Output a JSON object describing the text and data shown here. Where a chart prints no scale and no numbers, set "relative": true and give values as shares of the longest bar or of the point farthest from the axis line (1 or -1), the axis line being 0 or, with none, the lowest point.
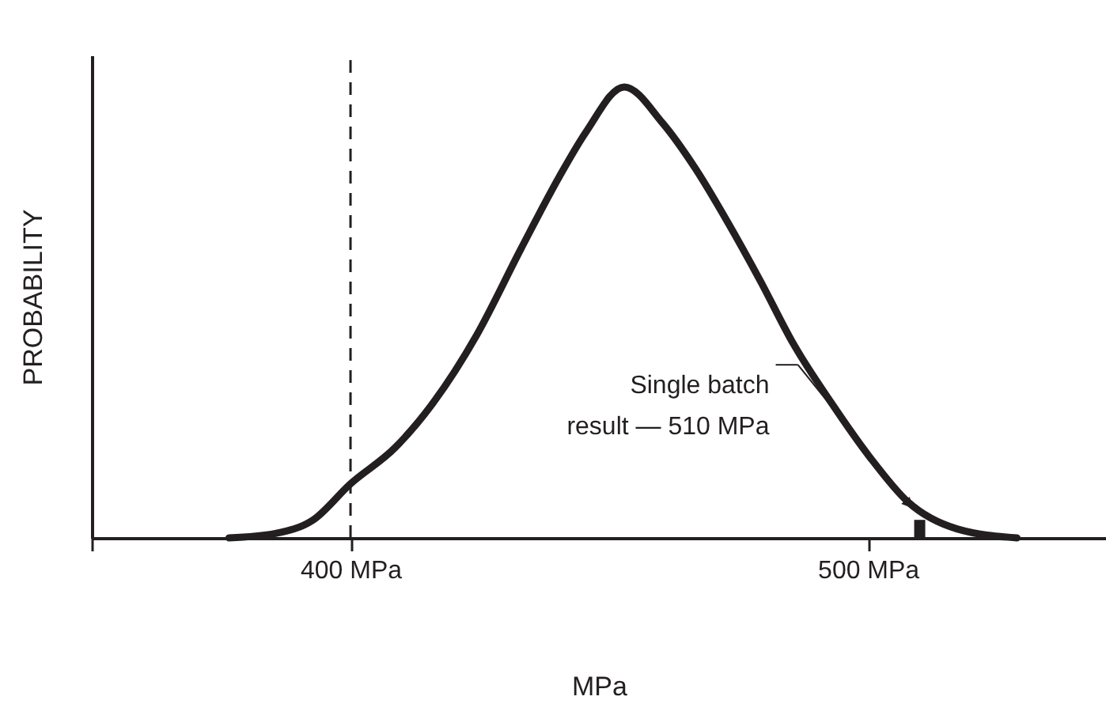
{
  "chart_data": {
    "type": "line",
    "relative": true,
    "xlabel": "MPa",
    "ylabel": "PROBABILITY",
    "xlim": [
      350,
      546
    ],
    "xticks": [
      {
        "value": 350,
        "label": null
      },
      {
        "value": 400,
        "label": "400 MPa"
      },
      {
        "value": 500,
        "label": "500 MPa"
      }
    ],
    "grid": false,
    "marker": "none",
    "line_style": "solid",
    "series": [
      {
        "color": "#231f20",
        "x": [
          376.5,
          385.5,
          392.8,
          400,
          408.6,
          416.0,
          424.4,
          432.9,
          440.3,
          445.5,
          452.9,
          460.3,
          466.6,
          472.9,
          479.2,
          485.6,
          492.9,
          500.3,
          507.7,
          517.2,
          528.8
        ],
        "values": [
          0,
          0.01,
          0.04,
          0.12,
          0.2,
          0.3,
          0.45,
          0.64,
          0.8,
          0.9,
          1,
          0.92,
          0.82,
          0.7,
          0.57,
          0.43,
          0.3,
          0.18,
          0.08,
          0.02,
          0
        ]
      },
      {
        "type": "bar",
        "color": "#231f20",
        "x": [
          510
        ],
        "values": [
          0.04
        ]
      }
    ],
    "ref_lines": [
      {
        "axis": "x",
        "value": 400,
        "label": null,
        "line_style": "dashed",
        "color": "#231f20"
      }
    ],
    "annotations": [
      "Single batch\nresult — 510 MPa"
    ]
  }
}
